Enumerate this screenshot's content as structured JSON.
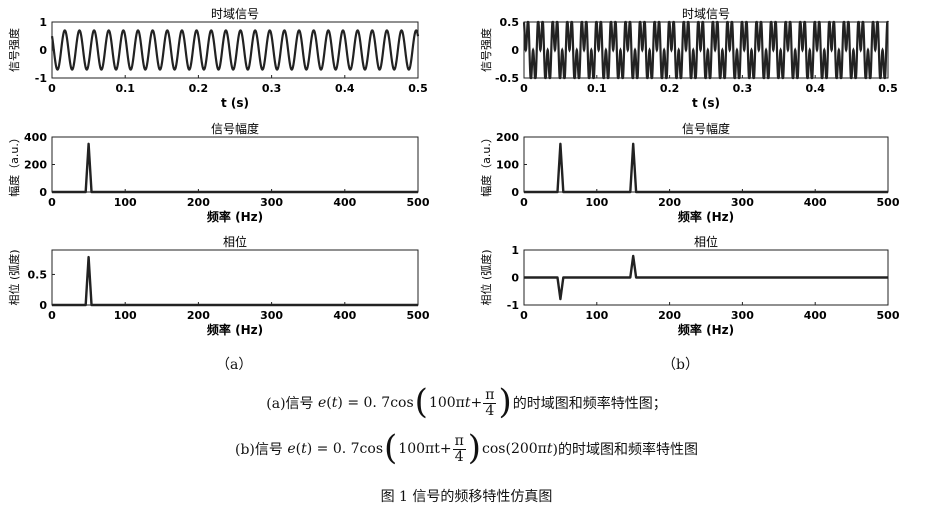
{
  "chart_data": [
    {
      "type": "line",
      "panel": "a",
      "title": "时域信号",
      "xlabel": "t (s)",
      "ylabel": "信号强度",
      "xlim": [
        0,
        0.5
      ],
      "ylim": [
        -1,
        1
      ],
      "xticks": [
        "0",
        "0.1",
        "0.2",
        "0.3",
        "0.4",
        "0.5"
      ],
      "yticks": [
        "-1",
        "0",
        "1"
      ],
      "series": [
        {
          "amplitude": 0.7,
          "frequency_hz": 50,
          "phase": 0.785
        }
      ]
    },
    {
      "type": "line",
      "panel": "a",
      "title": "信号幅度",
      "xlabel": "频率 (Hz)",
      "ylabel": "幅度（a.u.）",
      "xlim": [
        0,
        500
      ],
      "ylim": [
        0,
        400
      ],
      "xticks": [
        "0",
        "100",
        "200",
        "300",
        "400",
        "500"
      ],
      "yticks": [
        "0",
        "200",
        "400"
      ],
      "peaks": [
        {
          "x": 50,
          "y": 350
        }
      ]
    },
    {
      "type": "line",
      "panel": "a",
      "title": "相位",
      "xlabel": "频率 (Hz)",
      "ylabel": "相位 (弧度)",
      "xlim": [
        0,
        500
      ],
      "ylim": [
        0,
        0.9
      ],
      "xticks": [
        "0",
        "100",
        "200",
        "300",
        "400",
        "500"
      ],
      "yticks": [
        "0",
        "0.5"
      ],
      "peaks": [
        {
          "x": 50,
          "y": 0.785
        }
      ]
    },
    {
      "type": "line",
      "panel": "b",
      "title": "时域信号",
      "xlabel": "t (s)",
      "ylabel": "信号强度",
      "xlim": [
        0,
        0.5
      ],
      "ylim": [
        -0.5,
        0.5
      ],
      "xticks": [
        "0",
        "0.1",
        "0.2",
        "0.3",
        "0.4",
        "0.5"
      ],
      "yticks": [
        "-0.5",
        "0",
        "0.5"
      ],
      "series": [
        {
          "amplitude": 0.7,
          "frequency_hz": 50,
          "carrier_hz": 100,
          "phase": 0.785
        }
      ]
    },
    {
      "type": "line",
      "panel": "b",
      "title": "信号幅度",
      "xlabel": "频率 (Hz)",
      "ylabel": "幅度（a.u.）",
      "xlim": [
        0,
        500
      ],
      "ylim": [
        0,
        200
      ],
      "xticks": [
        "0",
        "100",
        "200",
        "300",
        "400",
        "500"
      ],
      "yticks": [
        "0",
        "100",
        "200"
      ],
      "peaks": [
        {
          "x": 50,
          "y": 175
        },
        {
          "x": 150,
          "y": 175
        }
      ]
    },
    {
      "type": "line",
      "panel": "b",
      "title": "相位",
      "xlabel": "频率 (Hz)",
      "ylabel": "相位 (弧度)",
      "xlim": [
        0,
        500
      ],
      "ylim": [
        -1,
        1
      ],
      "xticks": [
        "0",
        "100",
        "200",
        "300",
        "400",
        "500"
      ],
      "yticks": [
        "-1",
        "0",
        "1"
      ],
      "peaks": [
        {
          "x": 50,
          "y": -0.785
        },
        {
          "x": 150,
          "y": 0.785
        }
      ]
    }
  ],
  "labels": {
    "a": "（a）",
    "b": "（b）"
  },
  "captions": {
    "a": {
      "prefix": "(a)信号",
      "e": "e",
      "t": "t",
      "eq": ") = 0. 7cos",
      "inner": "100π",
      "plus": "+",
      "frac_num": "π",
      "frac_den": "4",
      "suffix": "的时域图和频率特性图；"
    },
    "b": {
      "prefix": "(b)信号",
      "e": "e",
      "t": "t",
      "eq": ") = 0. 7cos",
      "inner": "100πt+",
      "frac_num": "π",
      "frac_den": "4",
      "mid": "cos(200π",
      "suffix": ")的时域图和频率特性图"
    },
    "figure": "图 1 信号的频移特性仿真图"
  }
}
